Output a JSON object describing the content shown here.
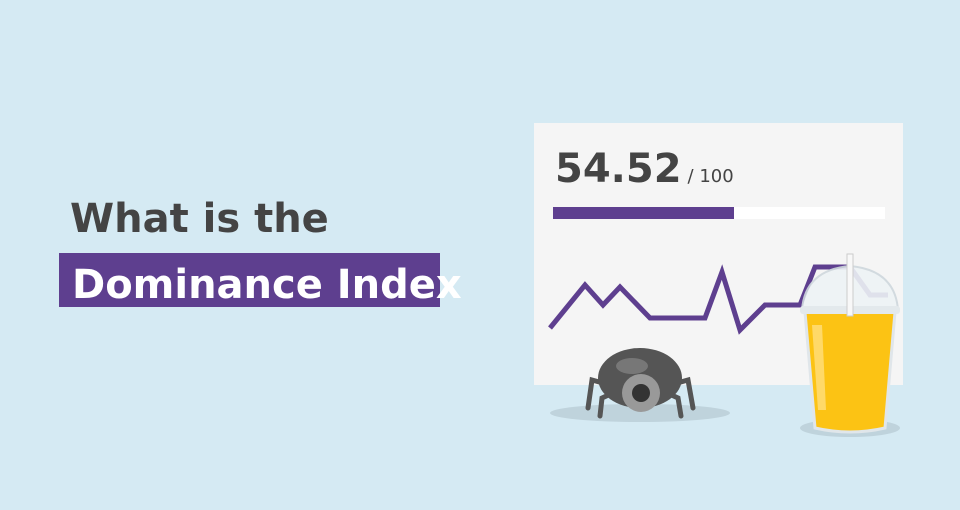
{
  "heading": {
    "line1": "What is the",
    "line2": "Dominance Index"
  },
  "score": {
    "value": 54.52,
    "max": {
      "value": 100,
      "label": "/ 100"
    }
  }
}
